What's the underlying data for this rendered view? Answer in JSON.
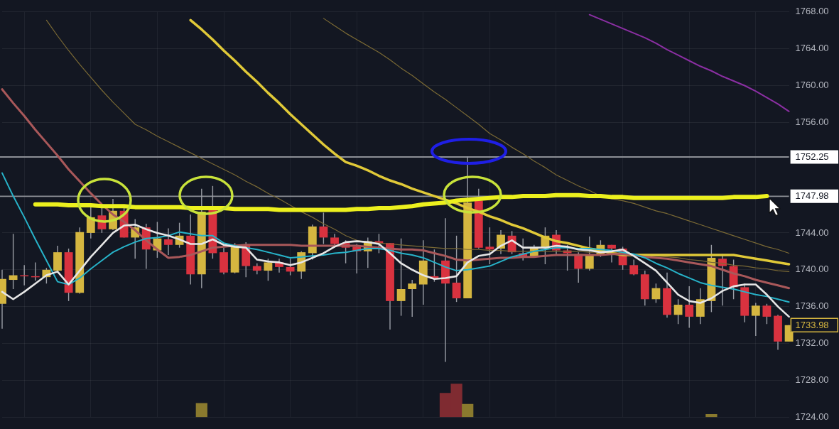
{
  "chart_data": {
    "type": "candlestick",
    "categories": [
      null,
      null,
      null,
      null,
      null,
      null,
      null,
      null,
      null,
      null,
      null,
      null,
      null,
      null,
      null,
      null,
      null,
      null,
      null,
      null,
      null,
      null,
      null,
      null,
      null,
      null,
      null,
      null,
      null,
      null,
      null,
      null,
      null,
      null,
      null,
      null,
      null,
      null,
      null,
      null,
      null,
      null,
      null,
      null,
      null,
      null,
      null,
      null,
      null,
      null,
      null,
      null,
      null,
      null,
      null,
      null,
      null,
      null,
      null,
      null,
      null,
      null,
      null,
      null,
      null,
      null,
      null,
      null,
      null,
      null,
      null,
      null
    ],
    "ohlc": [
      [
        1736.3,
        1740.0,
        1733.6,
        1739.0
      ],
      [
        1738.9,
        1743.9,
        1737.9,
        1739.4
      ],
      [
        1739.4,
        1740.5,
        1738.3,
        1739.3
      ],
      [
        1739.3,
        1740.8,
        1738.8,
        1739.2
      ],
      [
        1739.2,
        1740.2,
        1738.5,
        1740.0
      ],
      [
        1739.9,
        1742.6,
        1739.7,
        1741.9
      ],
      [
        1741.9,
        1742.3,
        1736.6,
        1737.5
      ],
      [
        1737.5,
        1744.6,
        1737.4,
        1744.1
      ],
      [
        1744.0,
        1747.0,
        1743.4,
        1745.7
      ],
      [
        1745.9,
        1746.7,
        1744.0,
        1744.4
      ],
      [
        1744.4,
        1747.7,
        1744.3,
        1746.4
      ],
      [
        1746.4,
        1746.7,
        1743.5,
        1743.5
      ],
      [
        1743.5,
        1745.5,
        1741.2,
        1744.6
      ],
      [
        1744.6,
        1745.0,
        1740.1,
        1742.2
      ],
      [
        1742.1,
        1745.2,
        1741.3,
        1743.4
      ],
      [
        1743.3,
        1744.5,
        1741.6,
        1742.7
      ],
      [
        1742.7,
        1745.1,
        1742.4,
        1743.7
      ],
      [
        1743.7,
        1746.0,
        1738.4,
        1739.5
      ],
      [
        1739.5,
        1748.8,
        1738.0,
        1746.3
      ],
      [
        1746.6,
        1749.1,
        1741.2,
        1741.8
      ],
      [
        1741.9,
        1742.4,
        1739.5,
        1739.7
      ],
      [
        1739.7,
        1742.9,
        1739.6,
        1742.7
      ],
      [
        1742.6,
        1743.0,
        1739.2,
        1740.4
      ],
      [
        1740.4,
        1740.7,
        1739.5,
        1739.9
      ],
      [
        1739.9,
        1741.2,
        1738.8,
        1740.8
      ],
      [
        1740.8,
        1741.2,
        1739.7,
        1740.3
      ],
      [
        1740.3,
        1741.2,
        1739.4,
        1739.8
      ],
      [
        1739.8,
        1742.0,
        1739.0,
        1741.9
      ],
      [
        1741.8,
        1744.9,
        1741.1,
        1744.7
      ],
      [
        1744.7,
        1746.2,
        1742.8,
        1743.5
      ],
      [
        1743.5,
        1743.9,
        1742.4,
        1742.8
      ],
      [
        1742.9,
        1743.2,
        1740.7,
        1742.4
      ],
      [
        1742.5,
        1742.8,
        1739.6,
        1742.0
      ],
      [
        1742.0,
        1743.5,
        1740.2,
        1743.1
      ],
      [
        1743.1,
        1743.9,
        1741.8,
        1742.9
      ],
      [
        1742.9,
        1742.9,
        1733.5,
        1736.6
      ],
      [
        1736.6,
        1743.4,
        1735.0,
        1737.9
      ],
      [
        1737.9,
        1738.9,
        1734.9,
        1738.5
      ],
      [
        1738.4,
        1743.2,
        1736.2,
        1741.0
      ],
      [
        1739.3,
        1742.2,
        1738.7,
        1739.0
      ],
      [
        1741.0,
        1745.6,
        1730.0,
        1738.5
      ],
      [
        1738.6,
        1743.7,
        1736.5,
        1736.9
      ],
      [
        1736.9,
        1752.3,
        1736.9,
        1747.3
      ],
      [
        1747.5,
        1748.8,
        1742.3,
        1742.4
      ],
      [
        1742.5,
        1744.6,
        1740.6,
        1742.2
      ],
      [
        1742.3,
        1744.3,
        1741.7,
        1743.8
      ],
      [
        1743.7,
        1744.2,
        1741.7,
        1741.9
      ],
      [
        1741.8,
        1743.4,
        1741.0,
        1741.4
      ],
      [
        1741.4,
        1742.7,
        1741.3,
        1742.3
      ],
      [
        1742.3,
        1744.6,
        1740.6,
        1743.7
      ],
      [
        1743.8,
        1744.3,
        1741.7,
        1742.1
      ],
      [
        1742.1,
        1742.7,
        1739.9,
        1741.8
      ],
      [
        1741.7,
        1741.9,
        1738.6,
        1740.1
      ],
      [
        1740.1,
        1743.6,
        1739.9,
        1741.6
      ],
      [
        1741.6,
        1743.2,
        1741.4,
        1742.7
      ],
      [
        1742.7,
        1742.7,
        1740.8,
        1742.3
      ],
      [
        1742.3,
        1742.5,
        1740.0,
        1740.5
      ],
      [
        1740.5,
        1741.1,
        1739.4,
        1739.5
      ],
      [
        1739.5,
        1739.9,
        1736.1,
        1736.8
      ],
      [
        1736.8,
        1738.5,
        1736.4,
        1738.0
      ],
      [
        1738.0,
        1739.7,
        1734.8,
        1735.1
      ],
      [
        1735.1,
        1736.8,
        1734.1,
        1736.2
      ],
      [
        1736.2,
        1738.2,
        1733.7,
        1734.9
      ],
      [
        1734.9,
        1738.0,
        1734.1,
        1736.8
      ],
      [
        1736.6,
        1742.7,
        1735.4,
        1741.3
      ],
      [
        1741.2,
        1741.7,
        1736.1,
        1740.4
      ],
      [
        1740.4,
        1741.1,
        1736.8,
        1738.1
      ],
      [
        1738.1,
        1738.5,
        1734.3,
        1735.0
      ],
      [
        1735.0,
        1736.4,
        1732.8,
        1736.1
      ],
      [
        1736.1,
        1736.3,
        1734.1,
        1734.9
      ],
      [
        1735.0,
        1735.1,
        1731.3,
        1732.2
      ],
      [
        1732.2,
        1734.0,
        1732.2,
        1733.98
      ]
    ],
    "colors": [
      "#d5b640",
      "#d5b640",
      "#d9323f",
      "#d9323f",
      "#d5b640",
      "#d5b640",
      "#d9323f",
      "#d5b640",
      "#d5b640",
      "#d9323f",
      "#d5b640",
      "#d9323f",
      "#d5b640",
      "#d9323f",
      "#d5b640",
      "#d9323f",
      "#d5b640",
      "#d9323f",
      "#d5b640",
      "#d9323f",
      "#d9323f",
      "#d5b640",
      "#d9323f",
      "#d9323f",
      "#d5b640",
      "#d9323f",
      "#d9323f",
      "#d5b640",
      "#d5b640",
      "#d9323f",
      "#d9323f",
      "#d9323f",
      "#d9323f",
      "#d5b640",
      "#d9323f",
      "#d9323f",
      "#d5b640",
      "#d5b640",
      "#d5b640",
      "#d9323f",
      "#d9323f",
      "#d9323f",
      "#d5b640",
      "#d9323f",
      "#d9323f",
      "#d5b640",
      "#d9323f",
      "#d9323f",
      "#d5b640",
      "#d5b640",
      "#d9323f",
      "#d9323f",
      "#d9323f",
      "#d5b640",
      "#d5b640",
      "#d9323f",
      "#d9323f",
      "#d9323f",
      "#d9323f",
      "#d5b640",
      "#d9323f",
      "#d5b640",
      "#d9323f",
      "#d5b640",
      "#d5b640",
      "#d9323f",
      "#d9323f",
      "#d9323f",
      "#d5b640",
      "#d9323f",
      "#d9323f",
      "#d5b640"
    ],
    "series": [
      {
        "type": "line",
        "color": "#7b6a35",
        "values": [
          null,
          null,
          null,
          null,
          1767.1,
          1765.4,
          1763.8,
          1762.3,
          1760.9,
          1759.5,
          1758.2,
          1757.0,
          1755.8,
          1755.2,
          1754.5,
          1753.9,
          1753.3,
          1752.7,
          1752.1,
          1751.5,
          1750.9,
          1750.3,
          1749.6,
          1749.0,
          1748.3,
          1747.7,
          1747.0,
          1746.3,
          1745.7,
          1745.0,
          1744.4,
          1743.7,
          1743.2,
          1743.0,
          1742.9,
          1742.8,
          1742.7,
          1742.6,
          1742.5,
          1742.4,
          1742.3,
          1742.3,
          1742.2,
          1742.2,
          1742.1,
          1742.1,
          1742.0,
          1742.0,
          1742.0,
          1742.0,
          1742.0,
          1742.0,
          1742.0,
          1741.9,
          1741.9,
          1741.9,
          1741.8,
          1741.7,
          1741.6,
          1741.5,
          1741.4,
          1741.3,
          1741.1,
          1741.0,
          1740.8,
          1740.7,
          1740.5,
          1740.4,
          1740.2,
          1740.1,
          1739.9,
          1739.8
        ]
      },
      {
        "type": "line",
        "color": "#7b6a35",
        "values": [
          null,
          null,
          null,
          null,
          null,
          null,
          null,
          null,
          null,
          null,
          null,
          null,
          null,
          null,
          null,
          null,
          null,
          null,
          null,
          null,
          null,
          null,
          null,
          null,
          null,
          null,
          null,
          null,
          null,
          1767.3,
          1766.5,
          1765.7,
          1765.0,
          1764.3,
          1763.6,
          1762.8,
          1761.9,
          1761.1,
          1760.2,
          1759.3,
          1758.5,
          1757.6,
          1756.7,
          1755.8,
          1754.8,
          1754.1,
          1753.3,
          1752.6,
          1751.8,
          1751.1,
          1750.3,
          1749.7,
          1749.1,
          1748.6,
          1748.0,
          1747.7,
          1747.5,
          1747.2,
          1746.8,
          1746.4,
          1746.1,
          1745.7,
          1745.3,
          1744.9,
          1744.5,
          1744.1,
          1743.7,
          1743.3,
          1742.9,
          1742.5,
          1742.2,
          1741.8
        ]
      },
      {
        "type": "line",
        "color": "#8b2fa3",
        "values": [
          null,
          null,
          null,
          null,
          null,
          null,
          null,
          null,
          null,
          null,
          null,
          null,
          null,
          null,
          null,
          null,
          null,
          null,
          null,
          null,
          null,
          null,
          null,
          null,
          null,
          null,
          null,
          null,
          null,
          null,
          null,
          null,
          null,
          null,
          null,
          null,
          null,
          null,
          null,
          null,
          null,
          null,
          null,
          null,
          null,
          null,
          null,
          null,
          null,
          null,
          null,
          null,
          null,
          1767.7,
          1767.2,
          1766.7,
          1766.2,
          1765.7,
          1765.2,
          1764.6,
          1763.9,
          1763.3,
          1762.7,
          1762.1,
          1761.6,
          1761.0,
          1760.5,
          1760.0,
          1759.4,
          1758.7,
          1758.0,
          1757.2
        ]
      },
      {
        "type": "line",
        "color": "#e0c938",
        "values": [
          null,
          null,
          null,
          null,
          null,
          null,
          null,
          null,
          null,
          null,
          null,
          null,
          null,
          null,
          null,
          null,
          null,
          1767.1,
          1766.1,
          1765.0,
          1763.8,
          1762.7,
          1761.5,
          1760.4,
          1759.2,
          1758.1,
          1756.9,
          1755.8,
          1754.7,
          1753.6,
          1752.6,
          1751.7,
          1751.3,
          1750.8,
          1750.2,
          1749.7,
          1749.3,
          1748.8,
          1748.4,
          1748.0,
          1747.6,
          1747.2,
          1746.7,
          1746.3,
          1745.8,
          1745.4,
          1744.9,
          1744.5,
          1744.0,
          1743.5,
          1743.1,
          1742.9,
          1742.6,
          1742.3,
          1742.1,
          1741.8,
          1741.6,
          1741.6,
          1741.6,
          1741.6,
          1741.6,
          1741.6,
          1741.6,
          1741.6,
          1741.6,
          1741.6,
          1741.6,
          1741.4,
          1741.2,
          1741.0,
          1740.8,
          1740.6
        ]
      },
      {
        "type": "line",
        "color": "#a9585a",
        "values": [
          1759.6,
          1758.1,
          1756.7,
          1755.2,
          1753.8,
          1752.4,
          1750.9,
          1749.6,
          1748.3,
          1747.1,
          1746.0,
          1745.2,
          1744.3,
          1743.2,
          1742.2,
          1741.3,
          1741.4,
          1741.6,
          1742.0,
          1742.4,
          1742.5,
          1742.6,
          1742.7,
          1742.7,
          1742.7,
          1742.7,
          1742.7,
          1742.6,
          1742.6,
          1742.6,
          1742.6,
          1742.6,
          1742.6,
          1742.5,
          1742.4,
          1742.3,
          1742.2,
          1742.2,
          1742.1,
          1741.8,
          1741.5,
          1741.1,
          1741.0,
          1741.1,
          1741.2,
          1741.3,
          1741.3,
          1741.4,
          1741.4,
          1741.5,
          1741.6,
          1741.6,
          1741.6,
          1741.6,
          1741.6,
          1741.7,
          1741.7,
          1741.6,
          1741.4,
          1741.3,
          1741.2,
          1741.0,
          1740.8,
          1740.6,
          1740.4,
          1740.0,
          1739.6,
          1739.3,
          1738.9,
          1738.6,
          1738.3,
          1738.0
        ]
      },
      {
        "type": "line",
        "color": "#27b3c9",
        "values": [
          1750.5,
          1748.0,
          1745.7,
          1743.3,
          1741.0,
          1738.7,
          1738.4,
          1739.1,
          1740.1,
          1741.0,
          1741.9,
          1742.5,
          1743.0,
          1743.4,
          1743.5,
          1743.7,
          1744.1,
          1743.9,
          1743.7,
          1743.7,
          1742.9,
          1742.6,
          1742.4,
          1742.2,
          1741.9,
          1741.6,
          1741.3,
          1741.4,
          1741.5,
          1741.6,
          1741.8,
          1741.9,
          1742.1,
          1742.3,
          1742.3,
          1742.1,
          1741.8,
          1741.6,
          1741.3,
          1740.8,
          1740.3,
          1739.9,
          1740.0,
          1740.2,
          1740.4,
          1740.9,
          1741.4,
          1741.7,
          1742.0,
          1742.2,
          1742.4,
          1742.4,
          1742.3,
          1742.3,
          1742.2,
          1742.1,
          1741.9,
          1741.7,
          1741.3,
          1740.7,
          1740.2,
          1739.6,
          1739.1,
          1738.6,
          1738.3,
          1738.1,
          1737.9,
          1737.6,
          1737.3,
          1737.1,
          1736.8,
          1736.5
        ]
      },
      {
        "type": "line",
        "color": "#e6e6e6",
        "values": [
          1737.6,
          1736.8,
          1737.6,
          1738.5,
          1739.4,
          1739.8,
          1738.4,
          1739.9,
          1741.4,
          1742.7,
          1744.0,
          1744.8,
          1744.9,
          1744.4,
          1744.0,
          1743.7,
          1743.3,
          1742.8,
          1742.8,
          1743.3,
          1742.7,
          1742.5,
          1742.4,
          1741.1,
          1740.9,
          1740.8,
          1740.5,
          1740.8,
          1741.3,
          1741.8,
          1742.5,
          1743.0,
          1743.1,
          1743.0,
          1742.8,
          1741.8,
          1740.7,
          1740.0,
          1739.4,
          1739.0,
          1739.1,
          1739.3,
          1740.8,
          1741.5,
          1741.7,
          1742.6,
          1743.2,
          1742.4,
          1742.4,
          1742.4,
          1742.6,
          1742.5,
          1742.2,
          1742.1,
          1741.9,
          1742.0,
          1742.2,
          1741.5,
          1740.7,
          1739.9,
          1738.6,
          1737.3,
          1736.6,
          1736.4,
          1736.9,
          1737.7,
          1738.2,
          1738.4,
          1738.4,
          1737.3,
          1736.0,
          1734.9
        ]
      },
      {
        "type": "line",
        "color": "#ecf01e",
        "values": [
          null,
          null,
          null,
          1747.1,
          1747.1,
          1747.1,
          1747.0,
          1747.0,
          1747.0,
          1746.9,
          1746.9,
          1746.9,
          1746.8,
          1746.8,
          1746.8,
          1746.8,
          1746.8,
          1746.7,
          1746.7,
          1746.7,
          1746.7,
          1746.6,
          1746.6,
          1746.6,
          1746.6,
          1746.5,
          1746.5,
          1746.5,
          1746.5,
          1746.5,
          1746.5,
          1746.5,
          1746.6,
          1746.6,
          1746.7,
          1746.7,
          1746.8,
          1746.9,
          1747.1,
          1747.2,
          1747.3,
          1747.5,
          1747.6,
          1747.7,
          1747.8,
          1747.9,
          1747.9,
          1748.0,
          1748.0,
          1748.0,
          1748.1,
          1748.1,
          1748.1,
          1748.0,
          1748.0,
          1747.9,
          1747.9,
          1747.8,
          1747.8,
          1747.8,
          1747.8,
          1747.8,
          1747.8,
          1747.8,
          1747.8,
          1747.8,
          1747.9,
          1747.9,
          1747.9,
          1748.0,
          null,
          null
        ]
      },
      {
        "type": "bar",
        "colors": [
          null,
          null,
          null,
          null,
          null,
          null,
          null,
          null,
          null,
          null,
          null,
          null,
          null,
          null,
          null,
          null,
          null,
          null,
          "#8a7a2e",
          null,
          null,
          null,
          null,
          null,
          null,
          null,
          null,
          null,
          null,
          null,
          null,
          null,
          null,
          null,
          null,
          null,
          null,
          null,
          null,
          null,
          "#7f2b31",
          "#7f2b31",
          "#8a7a2e",
          null,
          null,
          null,
          null,
          null,
          null,
          null,
          null,
          null,
          null,
          null,
          null,
          null,
          null,
          null,
          null,
          null,
          null,
          null,
          null,
          null,
          "#8a7a2e",
          null,
          null,
          null,
          null,
          null,
          null,
          null
        ],
        "values": [
          null,
          null,
          null,
          null,
          null,
          null,
          null,
          null,
          null,
          null,
          null,
          null,
          null,
          null,
          null,
          null,
          null,
          null,
          1.5,
          null,
          null,
          null,
          null,
          null,
          null,
          null,
          null,
          null,
          null,
          null,
          null,
          null,
          null,
          null,
          null,
          null,
          null,
          null,
          null,
          null,
          2.6,
          3.6,
          1.4,
          null,
          null,
          null,
          null,
          null,
          null,
          null,
          null,
          null,
          null,
          null,
          null,
          null,
          null,
          null,
          null,
          null,
          null,
          null,
          null,
          null,
          0.3,
          null,
          null,
          null,
          null,
          null,
          null,
          null
        ],
        "base": [
          null,
          null,
          null,
          null,
          null,
          null,
          null,
          null,
          null,
          null,
          null,
          null,
          null,
          null,
          null,
          null,
          null,
          null,
          1724,
          null,
          null,
          null,
          null,
          null,
          null,
          null,
          null,
          null,
          null,
          null,
          null,
          null,
          null,
          null,
          null,
          null,
          null,
          null,
          null,
          null,
          1724,
          1724,
          1724,
          null,
          null,
          null,
          null,
          null,
          null,
          null,
          null,
          null,
          null,
          null,
          null,
          null,
          null,
          null,
          null,
          null,
          null,
          null,
          null,
          null,
          1724,
          null,
          null,
          null,
          null,
          null,
          null,
          null
        ]
      }
    ],
    "ylim": [
      1724,
      1768
    ],
    "yticks": [
      {
        "value": 1724,
        "label": "1724.00"
      },
      {
        "value": 1728,
        "label": "1728.00"
      },
      {
        "value": 1732,
        "label": "1732.00"
      },
      {
        "value": 1736,
        "label": "1736.00"
      },
      {
        "value": 1740,
        "label": "1740.00"
      },
      {
        "value": 1744,
        "label": "1744.00"
      },
      {
        "value": 1756,
        "label": "1756.00"
      },
      {
        "value": 1760,
        "label": "1760.00"
      },
      {
        "value": 1764,
        "label": "1764.00"
      },
      {
        "value": 1768,
        "label": "1768.00"
      }
    ],
    "ref_lines": [
      {
        "axis": "y",
        "value": 1752.25,
        "label": "1752.25",
        "color": "#8c8f96"
      },
      {
        "axis": "y",
        "value": 1747.98,
        "label": "1747.98",
        "color": "#8c8f96"
      }
    ],
    "annotations": [
      "1733.98"
    ],
    "grid": true,
    "tick_labels": "y"
  }
}
